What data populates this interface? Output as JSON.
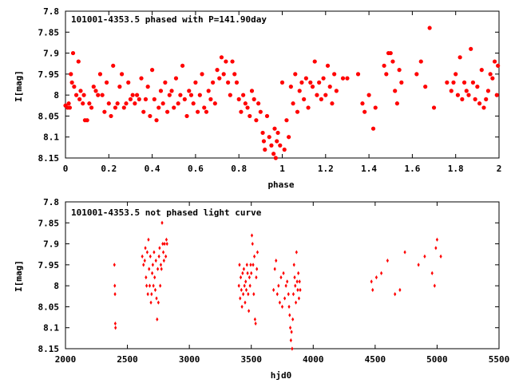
{
  "chart_data": [
    {
      "type": "scatter",
      "title": "101001-4353.5 phased with P=141.90day",
      "xlabel": "phase",
      "ylabel": "I[mag]",
      "xlim": [
        0,
        2
      ],
      "ylim": [
        8.15,
        7.8
      ],
      "y_inverted": true,
      "xticks": [
        0,
        0.2,
        0.4,
        0.6,
        0.8,
        1,
        1.2,
        1.4,
        1.6,
        1.8,
        2
      ],
      "xtick_labels": [
        "0",
        "0.2",
        "0.4",
        "0.6",
        "0.8",
        "1",
        "1.2",
        "1.4",
        "1.6",
        "1.8",
        "2"
      ],
      "yticks": [
        7.8,
        7.85,
        7.9,
        7.95,
        8,
        8.05,
        8.1,
        8.15
      ],
      "ytick_labels": [
        "7.8",
        "7.85",
        "7.9",
        "7.95",
        "8",
        "8.05",
        "8.1",
        "8.15"
      ],
      "grid": false,
      "marker_color": "#ff0000",
      "marker": "filled-circle",
      "points": [
        [
          0.0,
          8.025
        ],
        [
          0.01,
          8.03
        ],
        [
          0.015,
          8.02
        ],
        [
          0.02,
          8.03
        ],
        [
          0.025,
          7.95
        ],
        [
          0.03,
          7.97
        ],
        [
          0.035,
          7.9
        ],
        [
          0.04,
          7.98
        ],
        [
          0.05,
          8.0
        ],
        [
          0.06,
          7.92
        ],
        [
          0.065,
          8.01
        ],
        [
          0.07,
          7.99
        ],
        [
          0.08,
          8.02
        ],
        [
          0.085,
          8.0
        ],
        [
          0.09,
          8.06
        ],
        [
          0.1,
          8.06
        ],
        [
          0.11,
          8.02
        ],
        [
          0.12,
          8.03
        ],
        [
          0.13,
          7.98
        ],
        [
          0.14,
          7.99
        ],
        [
          0.15,
          8.0
        ],
        [
          0.16,
          7.95
        ],
        [
          0.17,
          8.0
        ],
        [
          0.18,
          8.04
        ],
        [
          0.19,
          7.97
        ],
        [
          0.2,
          8.02
        ],
        [
          0.21,
          8.05
        ],
        [
          0.22,
          7.93
        ],
        [
          0.23,
          8.03
        ],
        [
          0.24,
          8.02
        ],
        [
          0.25,
          7.98
        ],
        [
          0.26,
          7.95
        ],
        [
          0.27,
          8.03
        ],
        [
          0.28,
          8.02
        ],
        [
          0.29,
          7.97
        ],
        [
          0.3,
          8.01
        ],
        [
          0.31,
          8.0
        ],
        [
          0.32,
          8.02
        ],
        [
          0.33,
          8.0
        ],
        [
          0.34,
          8.01
        ],
        [
          0.35,
          7.96
        ],
        [
          0.36,
          8.04
        ],
        [
          0.37,
          8.01
        ],
        [
          0.38,
          7.98
        ],
        [
          0.39,
          8.05
        ],
        [
          0.4,
          7.94
        ],
        [
          0.41,
          8.01
        ],
        [
          0.42,
          8.06
        ],
        [
          0.43,
          8.03
        ],
        [
          0.44,
          7.99
        ],
        [
          0.45,
          8.02
        ],
        [
          0.46,
          7.97
        ],
        [
          0.47,
          8.04
        ],
        [
          0.48,
          8.0
        ],
        [
          0.49,
          7.99
        ],
        [
          0.5,
          8.03
        ],
        [
          0.51,
          7.96
        ],
        [
          0.52,
          8.02
        ],
        [
          0.53,
          8.0
        ],
        [
          0.54,
          7.93
        ],
        [
          0.55,
          8.01
        ],
        [
          0.56,
          8.05
        ],
        [
          0.57,
          7.99
        ],
        [
          0.58,
          8.0
        ],
        [
          0.59,
          8.02
        ],
        [
          0.6,
          7.97
        ],
        [
          0.61,
          8.04
        ],
        [
          0.62,
          8.0
        ],
        [
          0.63,
          7.95
        ],
        [
          0.64,
          8.03
        ],
        [
          0.65,
          8.04
        ],
        [
          0.66,
          7.99
        ],
        [
          0.67,
          8.01
        ],
        [
          0.68,
          7.97
        ],
        [
          0.69,
          8.02
        ],
        [
          0.7,
          7.94
        ],
        [
          0.71,
          7.96
        ],
        [
          0.72,
          7.91
        ],
        [
          0.73,
          7.95
        ],
        [
          0.74,
          7.92
        ],
        [
          0.75,
          7.97
        ],
        [
          0.76,
          8.0
        ],
        [
          0.77,
          7.92
        ],
        [
          0.78,
          7.95
        ],
        [
          0.79,
          7.97
        ],
        [
          0.8,
          8.01
        ],
        [
          0.81,
          8.04
        ],
        [
          0.82,
          8.0
        ],
        [
          0.83,
          8.02
        ],
        [
          0.84,
          8.03
        ],
        [
          0.85,
          8.05
        ],
        [
          0.86,
          7.99
        ],
        [
          0.87,
          8.01
        ],
        [
          0.88,
          8.06
        ],
        [
          0.89,
          8.02
        ],
        [
          0.9,
          8.04
        ],
        [
          0.91,
          8.09
        ],
        [
          0.915,
          8.11
        ],
        [
          0.92,
          8.13
        ],
        [
          0.93,
          8.05
        ],
        [
          0.94,
          8.1
        ],
        [
          0.95,
          8.12
        ],
        [
          0.96,
          8.14
        ],
        [
          0.965,
          8.08
        ],
        [
          0.97,
          8.15
        ],
        [
          0.975,
          8.11
        ],
        [
          0.98,
          8.09
        ],
        [
          0.99,
          8.12
        ],
        [
          1.0,
          7.97
        ],
        [
          1.01,
          8.13
        ],
        [
          1.02,
          8.06
        ],
        [
          1.03,
          8.1
        ],
        [
          1.04,
          7.98
        ],
        [
          1.05,
          8.02
        ],
        [
          1.06,
          7.95
        ],
        [
          1.07,
          8.04
        ],
        [
          1.08,
          7.99
        ],
        [
          1.09,
          7.97
        ],
        [
          1.1,
          8.01
        ],
        [
          1.11,
          7.96
        ],
        [
          1.12,
          8.03
        ],
        [
          1.13,
          7.97
        ],
        [
          1.14,
          7.98
        ],
        [
          1.15,
          7.92
        ],
        [
          1.16,
          8.0
        ],
        [
          1.17,
          7.97
        ],
        [
          1.18,
          8.01
        ],
        [
          1.19,
          7.96
        ],
        [
          1.2,
          8.0
        ],
        [
          1.21,
          7.93
        ],
        [
          1.22,
          7.98
        ],
        [
          1.23,
          8.02
        ],
        [
          1.24,
          7.95
        ],
        [
          1.25,
          7.99
        ],
        [
          1.28,
          7.96
        ],
        [
          1.3,
          7.96
        ],
        [
          1.35,
          7.95
        ],
        [
          1.37,
          8.02
        ],
        [
          1.38,
          8.04
        ],
        [
          1.4,
          8.0
        ],
        [
          1.42,
          8.08
        ],
        [
          1.43,
          8.03
        ],
        [
          1.47,
          7.93
        ],
        [
          1.48,
          7.95
        ],
        [
          1.49,
          7.9
        ],
        [
          1.5,
          7.9
        ],
        [
          1.51,
          7.92
        ],
        [
          1.52,
          7.99
        ],
        [
          1.53,
          8.02
        ],
        [
          1.54,
          7.94
        ],
        [
          1.55,
          7.97
        ],
        [
          1.62,
          7.95
        ],
        [
          1.64,
          7.92
        ],
        [
          1.66,
          7.98
        ],
        [
          1.68,
          7.84
        ],
        [
          1.7,
          8.03
        ],
        [
          1.76,
          7.97
        ],
        [
          1.78,
          7.99
        ],
        [
          1.79,
          7.97
        ],
        [
          1.8,
          7.95
        ],
        [
          1.81,
          8.0
        ],
        [
          1.82,
          7.91
        ],
        [
          1.83,
          8.01
        ],
        [
          1.84,
          7.97
        ],
        [
          1.85,
          7.99
        ],
        [
          1.86,
          8.0
        ],
        [
          1.87,
          7.89
        ],
        [
          1.88,
          7.97
        ],
        [
          1.89,
          8.01
        ],
        [
          1.9,
          7.98
        ],
        [
          1.91,
          8.02
        ],
        [
          1.92,
          7.94
        ],
        [
          1.93,
          8.03
        ],
        [
          1.94,
          8.01
        ],
        [
          1.95,
          7.99
        ],
        [
          1.96,
          7.95
        ],
        [
          1.97,
          7.96
        ],
        [
          1.98,
          7.92
        ],
        [
          1.99,
          8.0
        ],
        [
          1.995,
          7.93
        ]
      ]
    },
    {
      "type": "scatter",
      "title": "101001-4353.5 not phased light curve",
      "xlabel": "hjd0",
      "ylabel": "I[mag]",
      "xlim": [
        2000,
        5500
      ],
      "ylim": [
        8.15,
        7.8
      ],
      "y_inverted": true,
      "xticks": [
        2000,
        2500,
        3000,
        3500,
        4000,
        4500,
        5000,
        5500
      ],
      "xtick_labels": [
        "2000",
        "2500",
        "3000",
        "3500",
        "4000",
        "4500",
        "5000",
        "5500"
      ],
      "yticks": [
        7.8,
        7.85,
        7.9,
        7.95,
        8,
        8.05,
        8.1,
        8.15
      ],
      "ytick_labels": [
        "7.8",
        "7.85",
        "7.9",
        "7.95",
        "8",
        "8.05",
        "8.1",
        "8.15"
      ],
      "grid": false,
      "marker_color": "#ff0000",
      "marker": "diamond",
      "points": [
        [
          2395,
          7.95
        ],
        [
          2398,
          8.0
        ],
        [
          2400,
          8.02
        ],
        [
          2402,
          8.09
        ],
        [
          2404,
          8.1
        ],
        [
          2620,
          7.93
        ],
        [
          2630,
          7.95
        ],
        [
          2640,
          7.94
        ],
        [
          2645,
          7.91
        ],
        [
          2650,
          7.98
        ],
        [
          2655,
          8.0
        ],
        [
          2660,
          7.92
        ],
        [
          2665,
          8.02
        ],
        [
          2670,
          7.89
        ],
        [
          2675,
          7.96
        ],
        [
          2680,
          8.0
        ],
        [
          2685,
          7.93
        ],
        [
          2690,
          8.04
        ],
        [
          2695,
          8.02
        ],
        [
          2700,
          7.97
        ],
        [
          2705,
          7.95
        ],
        [
          2710,
          8.0
        ],
        [
          2715,
          7.92
        ],
        [
          2720,
          7.98
        ],
        [
          2725,
          8.01
        ],
        [
          2730,
          7.94
        ],
        [
          2735,
          8.03
        ],
        [
          2740,
          8.08
        ],
        [
          2745,
          7.96
        ],
        [
          2750,
          8.04
        ],
        [
          2755,
          7.93
        ],
        [
          2760,
          7.91
        ],
        [
          2765,
          8.0
        ],
        [
          2770,
          7.95
        ],
        [
          2775,
          7.96
        ],
        [
          2780,
          7.85
        ],
        [
          2785,
          7.9
        ],
        [
          2790,
          7.92
        ],
        [
          2795,
          7.94
        ],
        [
          2800,
          7.9
        ],
        [
          2810,
          7.93
        ],
        [
          2815,
          7.89
        ],
        [
          2820,
          7.9
        ],
        [
          3400,
          8.0
        ],
        [
          3405,
          7.95
        ],
        [
          3410,
          8.03
        ],
        [
          3415,
          7.98
        ],
        [
          3420,
          8.01
        ],
        [
          3425,
          8.05
        ],
        [
          3430,
          7.97
        ],
        [
          3435,
          8.02
        ],
        [
          3440,
          7.96
        ],
        [
          3445,
          8.0
        ],
        [
          3450,
          8.04
        ],
        [
          3455,
          7.99
        ],
        [
          3460,
          8.01
        ],
        [
          3465,
          7.95
        ],
        [
          3470,
          7.97
        ],
        [
          3475,
          8.02
        ],
        [
          3480,
          8.06
        ],
        [
          3485,
          7.98
        ],
        [
          3490,
          8.0
        ],
        [
          3495,
          7.95
        ],
        [
          3500,
          7.97
        ],
        [
          3505,
          7.88
        ],
        [
          3510,
          7.9
        ],
        [
          3515,
          7.95
        ],
        [
          3520,
          8.02
        ],
        [
          3525,
          7.93
        ],
        [
          3530,
          8.08
        ],
        [
          3535,
          8.09
        ],
        [
          3540,
          7.98
        ],
        [
          3545,
          7.96
        ],
        [
          3550,
          7.92
        ],
        [
          3680,
          8.01
        ],
        [
          3690,
          7.96
        ],
        [
          3700,
          7.94
        ],
        [
          3710,
          8.02
        ],
        [
          3720,
          8.0
        ],
        [
          3730,
          8.04
        ],
        [
          3740,
          7.98
        ],
        [
          3750,
          8.05
        ],
        [
          3760,
          7.97
        ],
        [
          3770,
          8.03
        ],
        [
          3780,
          8.0
        ],
        [
          3790,
          7.99
        ],
        [
          3800,
          8.02
        ],
        [
          3805,
          8.05
        ],
        [
          3810,
          8.07
        ],
        [
          3815,
          8.1
        ],
        [
          3820,
          8.13
        ],
        [
          3825,
          8.11
        ],
        [
          3830,
          8.15
        ],
        [
          3835,
          8.08
        ],
        [
          3840,
          8.02
        ],
        [
          3845,
          7.95
        ],
        [
          3850,
          7.98
        ],
        [
          3855,
          8.0
        ],
        [
          3860,
          8.04
        ],
        [
          3865,
          7.92
        ],
        [
          3870,
          7.99
        ],
        [
          3875,
          8.01
        ],
        [
          3880,
          7.97
        ],
        [
          3885,
          8.03
        ],
        [
          3890,
          7.99
        ],
        [
          3895,
          8.01
        ],
        [
          4470,
          7.99
        ],
        [
          4480,
          8.01
        ],
        [
          4510,
          7.98
        ],
        [
          4550,
          7.97
        ],
        [
          4600,
          7.94
        ],
        [
          4660,
          8.02
        ],
        [
          4700,
          8.01
        ],
        [
          4740,
          7.92
        ],
        [
          4850,
          7.95
        ],
        [
          4900,
          7.93
        ],
        [
          4960,
          7.97
        ],
        [
          4980,
          8.0
        ],
        [
          4990,
          7.91
        ],
        [
          5000,
          7.89
        ],
        [
          5030,
          7.93
        ]
      ]
    }
  ]
}
